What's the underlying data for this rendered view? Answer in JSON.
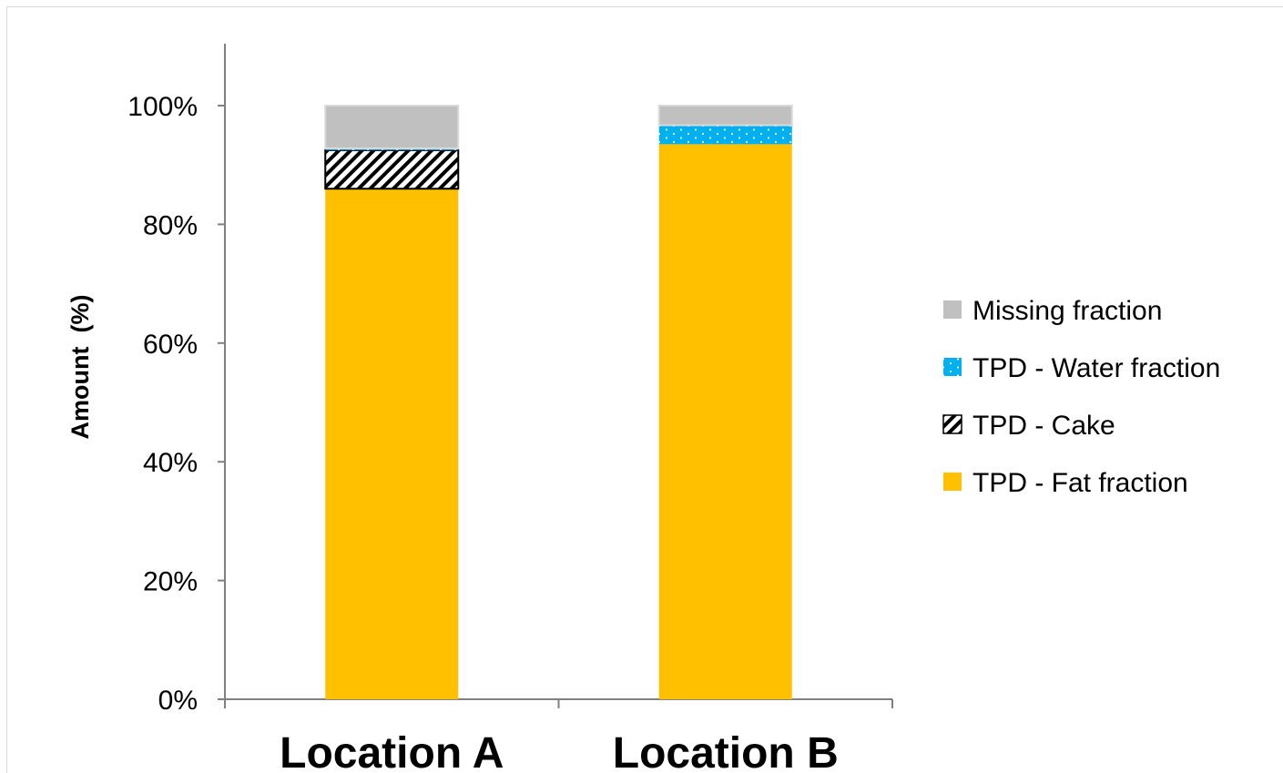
{
  "chart_data": {
    "type": "bar",
    "stacked": true,
    "categories": [
      "Location A",
      "Location B"
    ],
    "series": [
      {
        "name": "TPD - Fat fraction",
        "values": [
          86,
          93.5
        ],
        "color": "#ffc000",
        "pattern": "solid"
      },
      {
        "name": "TPD - Cake",
        "values": [
          6.5,
          0
        ],
        "color": "#ffffff",
        "pattern": "diagonal-hatch"
      },
      {
        "name": "TPD - Water fraction",
        "values": [
          0.3,
          3.2
        ],
        "color": "#00b0f0",
        "pattern": "dotted"
      },
      {
        "name": "Missing fraction",
        "values": [
          7.2,
          3.3
        ],
        "color": "#c0c0c0",
        "pattern": "solid"
      }
    ],
    "title": "",
    "xlabel": "",
    "ylabel": "Amount  (%)",
    "ylim": [
      0,
      100
    ],
    "yticks": [
      "0%",
      "20%",
      "40%",
      "60%",
      "80%",
      "100%"
    ],
    "ytick_values": [
      0,
      20,
      40,
      60,
      80,
      100
    ],
    "grid": false,
    "legend_position": "right"
  }
}
